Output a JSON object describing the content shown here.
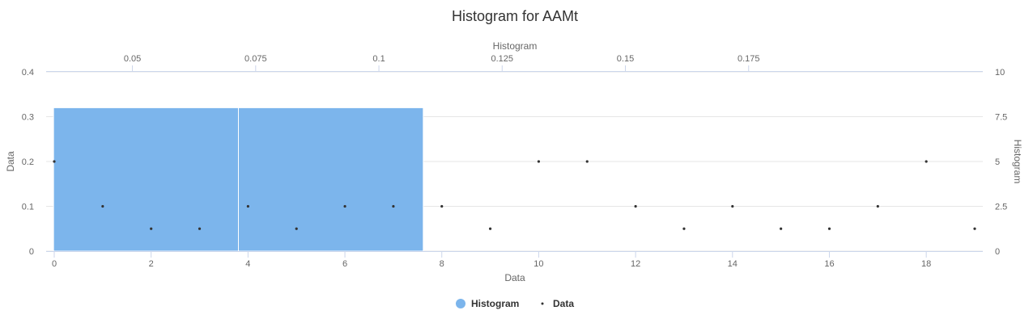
{
  "chart_data": {
    "type": "histogram+scatter",
    "title": "Histogram for AAMt",
    "x_bottom": {
      "label": "Data",
      "range": [
        0,
        19
      ],
      "ticks": [
        0,
        2,
        4,
        6,
        8,
        10,
        12,
        14,
        16,
        18
      ]
    },
    "x_top": {
      "label": "Histogram",
      "range": [
        0.0325,
        0.2225
      ],
      "ticks": [
        0.05,
        0.075,
        0.1,
        0.125,
        0.15,
        0.175
      ]
    },
    "y_left": {
      "label": "Data",
      "range": [
        0,
        0.4
      ],
      "ticks": [
        0,
        0.1,
        0.2,
        0.3,
        0.4
      ]
    },
    "y_right": {
      "label": "Histogram",
      "range": [
        0,
        10
      ],
      "ticks": [
        0,
        2.5,
        5,
        7.5,
        10
      ]
    },
    "grid": true,
    "legend_position": "bottom-center",
    "series": [
      {
        "name": "Histogram",
        "type": "histogram",
        "color": "#7cb5ec",
        "bins": [
          {
            "from": 0.034,
            "to": 0.0715,
            "count": 8
          },
          {
            "from": 0.0715,
            "to": 0.109,
            "count": 8
          }
        ]
      },
      {
        "name": "Data",
        "type": "scatter",
        "color": "#333333",
        "x": [
          0,
          1,
          2,
          3,
          4,
          5,
          6,
          7,
          8,
          9,
          10,
          11,
          12,
          13,
          14,
          15,
          16,
          17,
          18,
          19
        ],
        "y": [
          0.2,
          0.1,
          0.05,
          0.05,
          0.1,
          0.05,
          0.1,
          0.1,
          0.1,
          0.05,
          0.2,
          0.2,
          0.1,
          0.05,
          0.1,
          0.05,
          0.05,
          0.1,
          0.2,
          0.05
        ]
      }
    ]
  }
}
